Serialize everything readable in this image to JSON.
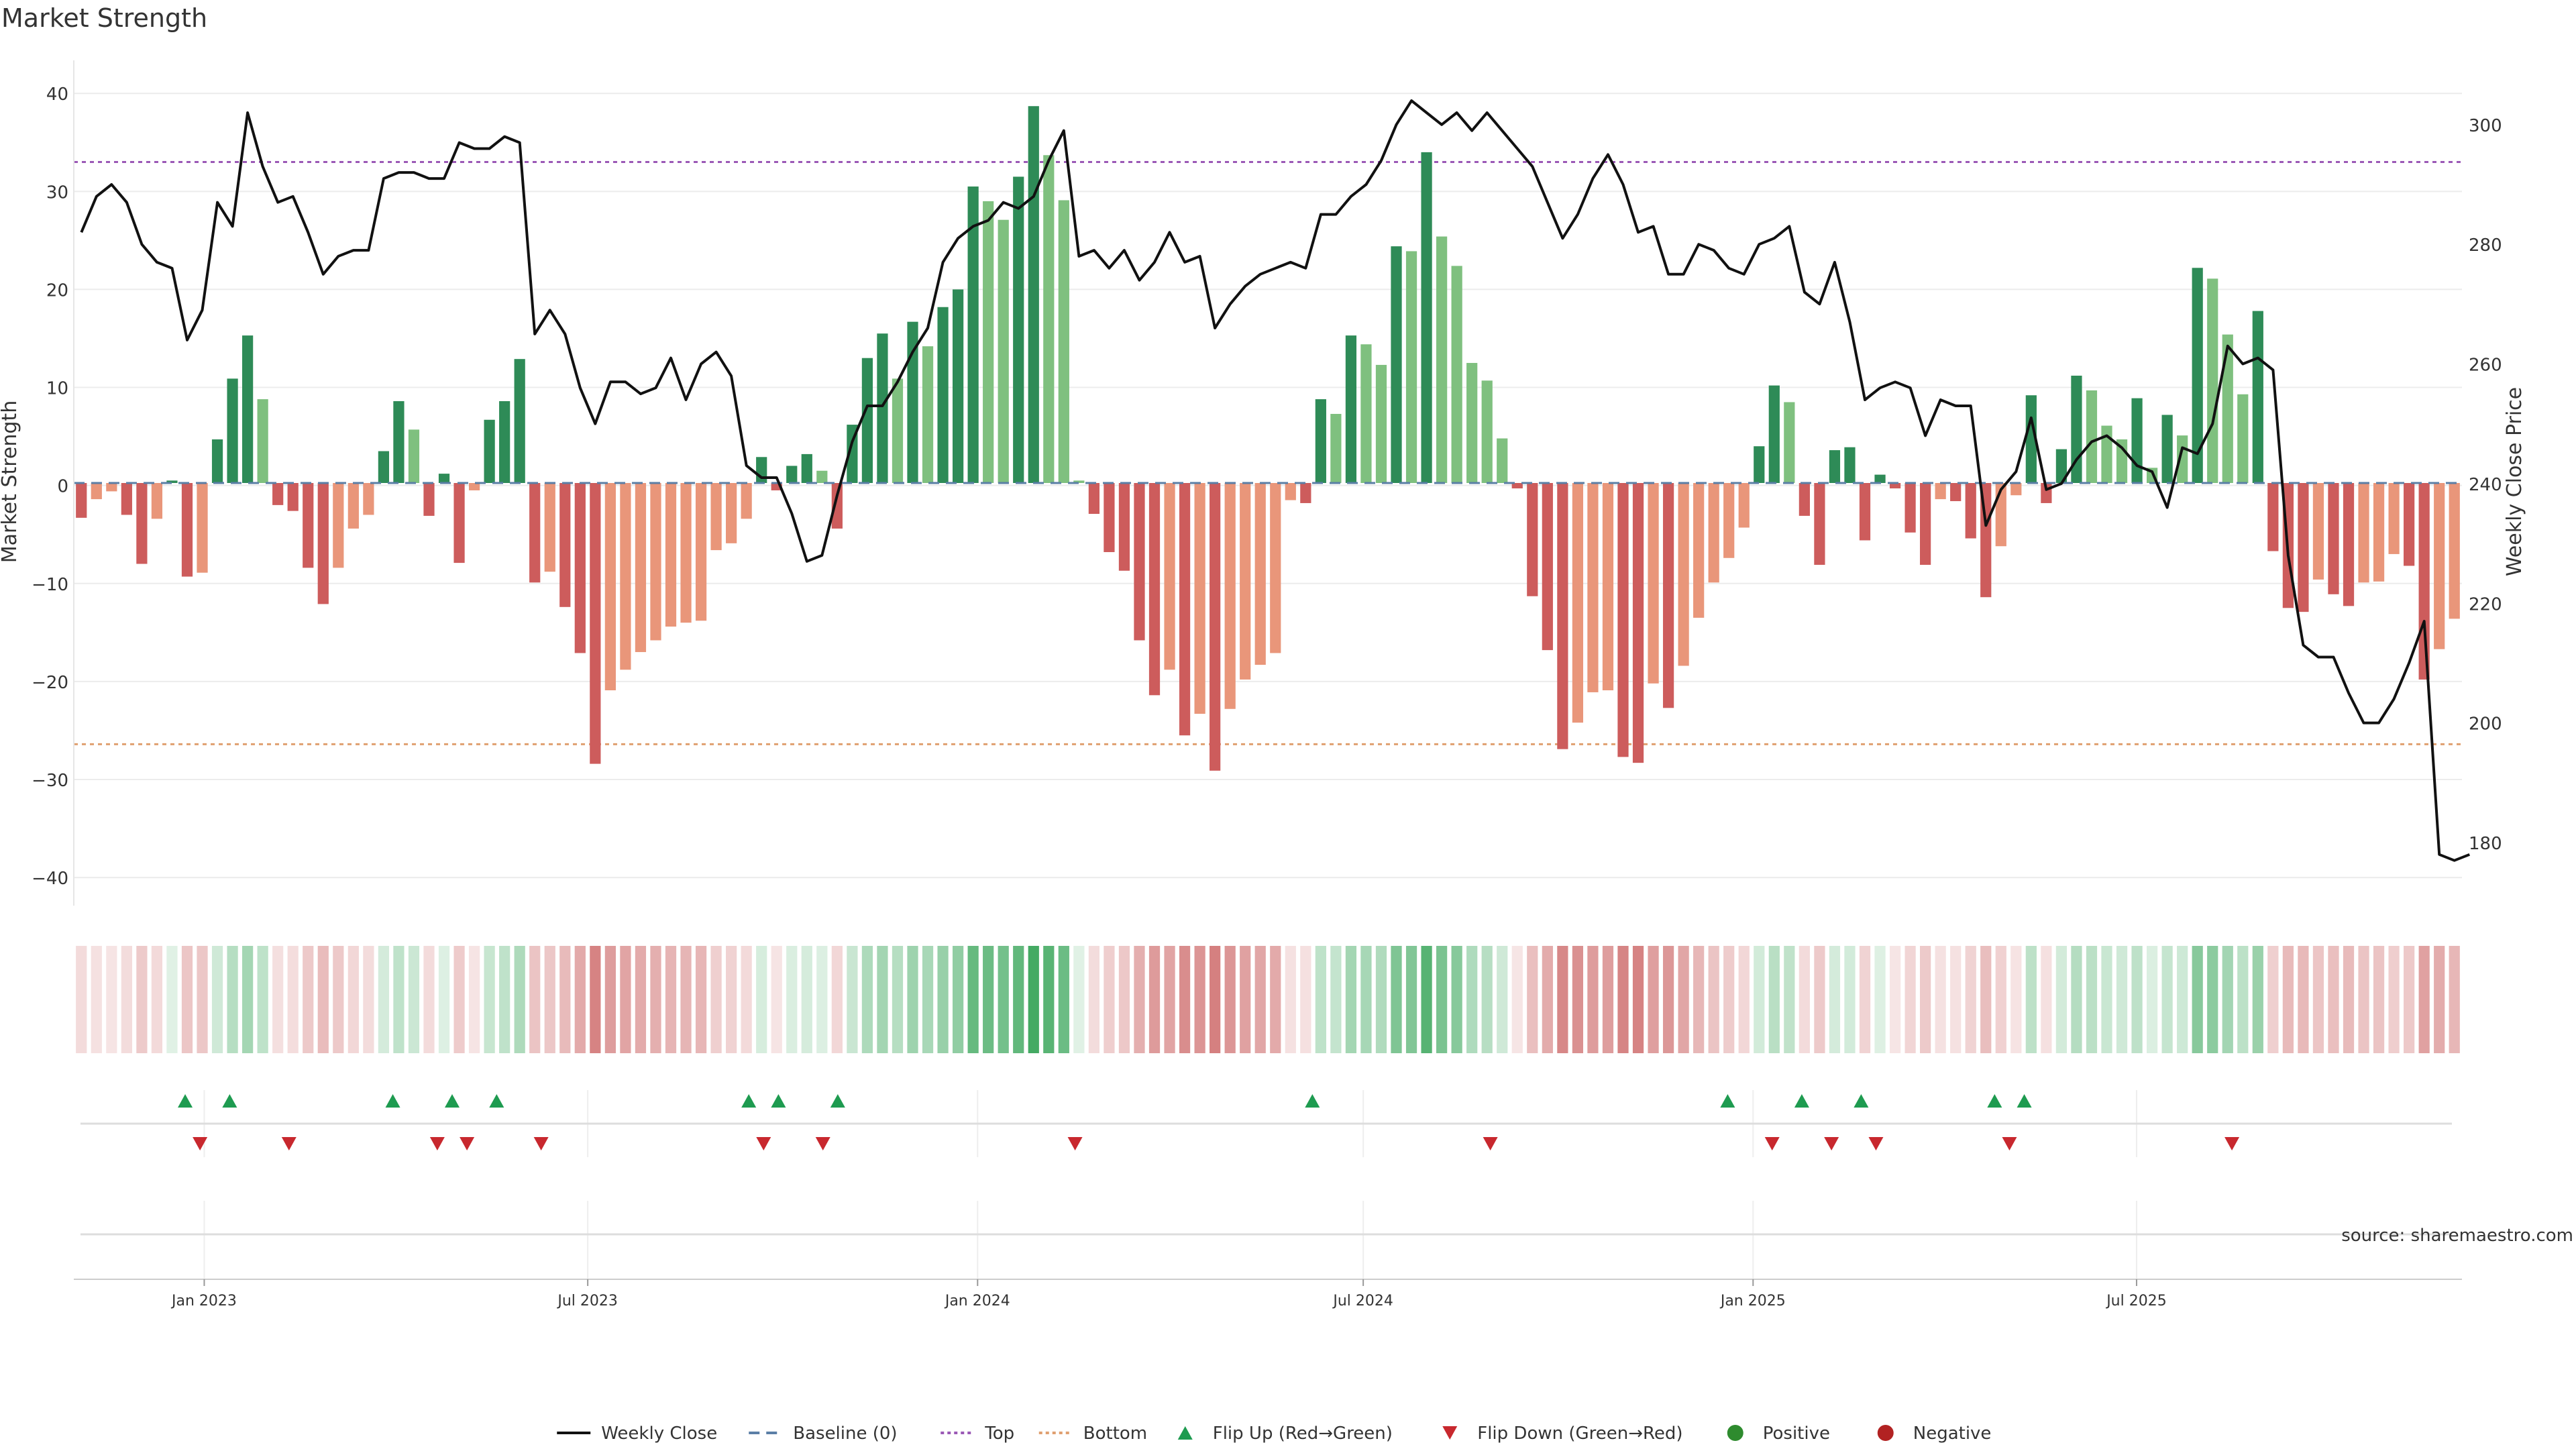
{
  "chart_data": {
    "type": "bar",
    "title": "Market Strength",
    "ylabel_left": "Market Strength",
    "ylabel_right": "Weekly Close Price",
    "source": "source: sharemaestro.com",
    "ylim_left": [
      -41.5,
      42
    ],
    "ylim_right": [
      171.7,
      308.5
    ],
    "yticks_left": [
      "40",
      "30",
      "20",
      "10",
      "0",
      "−10",
      "−20",
      "−30",
      "−40"
    ],
    "yticks_left_values": [
      40,
      30,
      20,
      10,
      0,
      -10,
      -20,
      -30,
      -40
    ],
    "yticks_right": [
      "300",
      "280",
      "260",
      "240",
      "220",
      "200",
      "180"
    ],
    "yticks_right_values": [
      300,
      280,
      260,
      240,
      220,
      200,
      180
    ],
    "top_threshold": 33,
    "bottom_threshold": -26.4,
    "date_range": [
      "2022-11-04",
      "2025-11-28"
    ],
    "x_ticks": [
      {
        "label": "Jan 2023",
        "date": "2023-01-01"
      },
      {
        "label": "Jul 2023",
        "date": "2023-07-01"
      },
      {
        "label": "Jan 2024",
        "date": "2024-01-01"
      },
      {
        "label": "Jul 2024",
        "date": "2024-07-01"
      },
      {
        "label": "Jan 2025",
        "date": "2025-01-01"
      },
      {
        "label": "Jul 2025",
        "date": "2025-07-01"
      }
    ],
    "strength": [
      -3.3,
      -1.4,
      -0.6,
      -3,
      -8,
      -3.4,
      0.5,
      -9.3,
      -8.9,
      4.7,
      10.9,
      15.3,
      8.8,
      -2,
      -2.6,
      -8.4,
      -12.1,
      -8.4,
      -4.4,
      -3,
      3.5,
      8.6,
      5.7,
      -3.1,
      1.2,
      -7.9,
      -0.5,
      6.7,
      8.6,
      12.9,
      -9.9,
      -8.8,
      -12.4,
      -17.1,
      -28.4,
      -20.9,
      -18.8,
      -17,
      -15.8,
      -14.4,
      -14,
      -13.8,
      -6.6,
      -5.9,
      -3.4,
      2.9,
      -0.5,
      2,
      3.2,
      1.5,
      -4.4,
      6.2,
      13,
      15.5,
      10.9,
      16.7,
      14.2,
      18.2,
      20,
      30.5,
      29,
      27.1,
      31.5,
      38.7,
      33.7,
      29.1,
      0.5,
      -2.9,
      -6.8,
      -8.7,
      -15.8,
      -21.4,
      -18.8,
      -25.5,
      -23.3,
      -29.1,
      -22.8,
      -19.8,
      -18.3,
      -17.1,
      -1.5,
      -1.8,
      8.8,
      7.3,
      15.3,
      14.4,
      12.3,
      24.4,
      23.9,
      34,
      25.4,
      22.4,
      12.5,
      10.7,
      4.8,
      -0.3,
      -11.3,
      -16.8,
      -26.9,
      -24.2,
      -21.1,
      -20.9,
      -27.7,
      -28.3,
      -20.2,
      -22.7,
      -18.4,
      -13.5,
      -9.9,
      -7.4,
      -4.3,
      4,
      10.2,
      8.5,
      -3.1,
      -8.1,
      3.6,
      3.9,
      -5.6,
      1.1,
      -0.3,
      -4.8,
      -8.1,
      -1.4,
      -1.6,
      -5.4,
      -11.4,
      -6.2,
      -1,
      9.2,
      -1.8,
      3.7,
      11.2,
      9.7,
      6.1,
      4.7,
      8.9,
      1.8,
      7.2,
      5.1,
      22.2,
      21.1,
      15.4,
      9.3,
      17.8,
      -6.7,
      -12.5,
      -12.9,
      -9.6,
      -11.1,
      -12.3,
      -9.9,
      -9.8,
      -7,
      -8.2,
      -19.8,
      -16.7,
      -13.6
    ],
    "close": [
      282,
      288,
      290,
      287,
      280,
      277,
      276,
      264,
      269,
      287,
      283,
      302,
      293,
      287,
      288,
      282,
      275,
      278,
      279,
      279,
      291,
      292,
      292,
      291,
      291,
      297,
      296,
      296,
      298,
      297,
      265,
      269,
      265,
      256,
      250,
      257,
      257,
      255,
      256,
      261,
      254,
      260,
      262,
      258,
      243,
      241,
      241,
      235,
      227,
      228,
      238,
      247,
      253,
      253,
      257,
      262,
      266,
      277,
      281,
      283,
      284,
      287,
      286,
      288,
      294,
      299,
      278,
      279,
      276,
      279,
      274,
      277,
      282,
      277,
      278,
      266,
      270,
      273,
      275,
      276,
      277,
      276,
      285,
      285,
      288,
      290,
      294,
      300,
      304,
      302,
      300,
      302,
      299,
      302,
      299,
      296,
      293,
      287,
      281,
      285,
      291,
      295,
      290,
      282,
      283,
      275,
      275,
      280,
      279,
      276,
      275,
      280,
      281,
      283,
      272,
      270,
      277,
      267,
      254,
      256,
      257,
      256,
      248,
      254,
      253,
      253,
      233,
      239,
      242,
      251,
      239,
      240,
      244,
      247,
      248,
      246,
      243,
      242,
      236,
      246,
      245,
      250,
      263,
      260,
      261,
      259,
      228,
      213,
      211,
      211,
      205,
      200,
      200,
      204,
      210,
      217,
      178,
      177,
      178
    ],
    "flip_up_dates": [
      "2022-12-23",
      "2023-01-13",
      "2023-03-31",
      "2023-04-28",
      "2023-05-19",
      "2023-09-15",
      "2023-09-29",
      "2023-10-27",
      "2024-06-07",
      "2024-12-20",
      "2025-01-24",
      "2025-02-21",
      "2025-04-25",
      "2025-05-09"
    ],
    "flip_down_dates": [
      "2022-12-30",
      "2023-02-10",
      "2023-04-21",
      "2023-05-05",
      "2023-06-09",
      "2023-09-22",
      "2023-10-20",
      "2024-02-16",
      "2024-08-30",
      "2025-01-10",
      "2025-02-07",
      "2025-02-28",
      "2025-05-02",
      "2025-08-15"
    ],
    "legend": {
      "position": "bottom-center",
      "entries": [
        {
          "label": "Weekly Close",
          "symbol": "solid-line",
          "color": "#111111"
        },
        {
          "label": "Baseline (0)",
          "symbol": "dash-line",
          "color": "#5b7fa6"
        },
        {
          "label": "Top",
          "symbol": "dotted-line",
          "color": "#9b59b6"
        },
        {
          "label": "Bottom",
          "symbol": "dotted-line",
          "color": "#e0a070"
        },
        {
          "label": "Flip Up (Red→Green)",
          "symbol": "triangle-up",
          "color": "#1e9b50"
        },
        {
          "label": "Flip Down (Green→Red)",
          "symbol": "triangle-down",
          "color": "#c8282e"
        },
        {
          "label": "Positive",
          "symbol": "dot",
          "color": "#2e8b2e"
        },
        {
          "label": "Negative",
          "symbol": "dot",
          "color": "#b22222"
        }
      ]
    },
    "colors": {
      "strong_green": "#2e8b57",
      "light_green": "#7fc07f",
      "strong_red": "#cd5c5c",
      "light_red": "#e9967a",
      "price_line": "#111111",
      "baseline": "#5b7fa6",
      "top_line": "#9b59b6",
      "bottom_line": "#e0a070",
      "grid": "#ececec"
    }
  }
}
